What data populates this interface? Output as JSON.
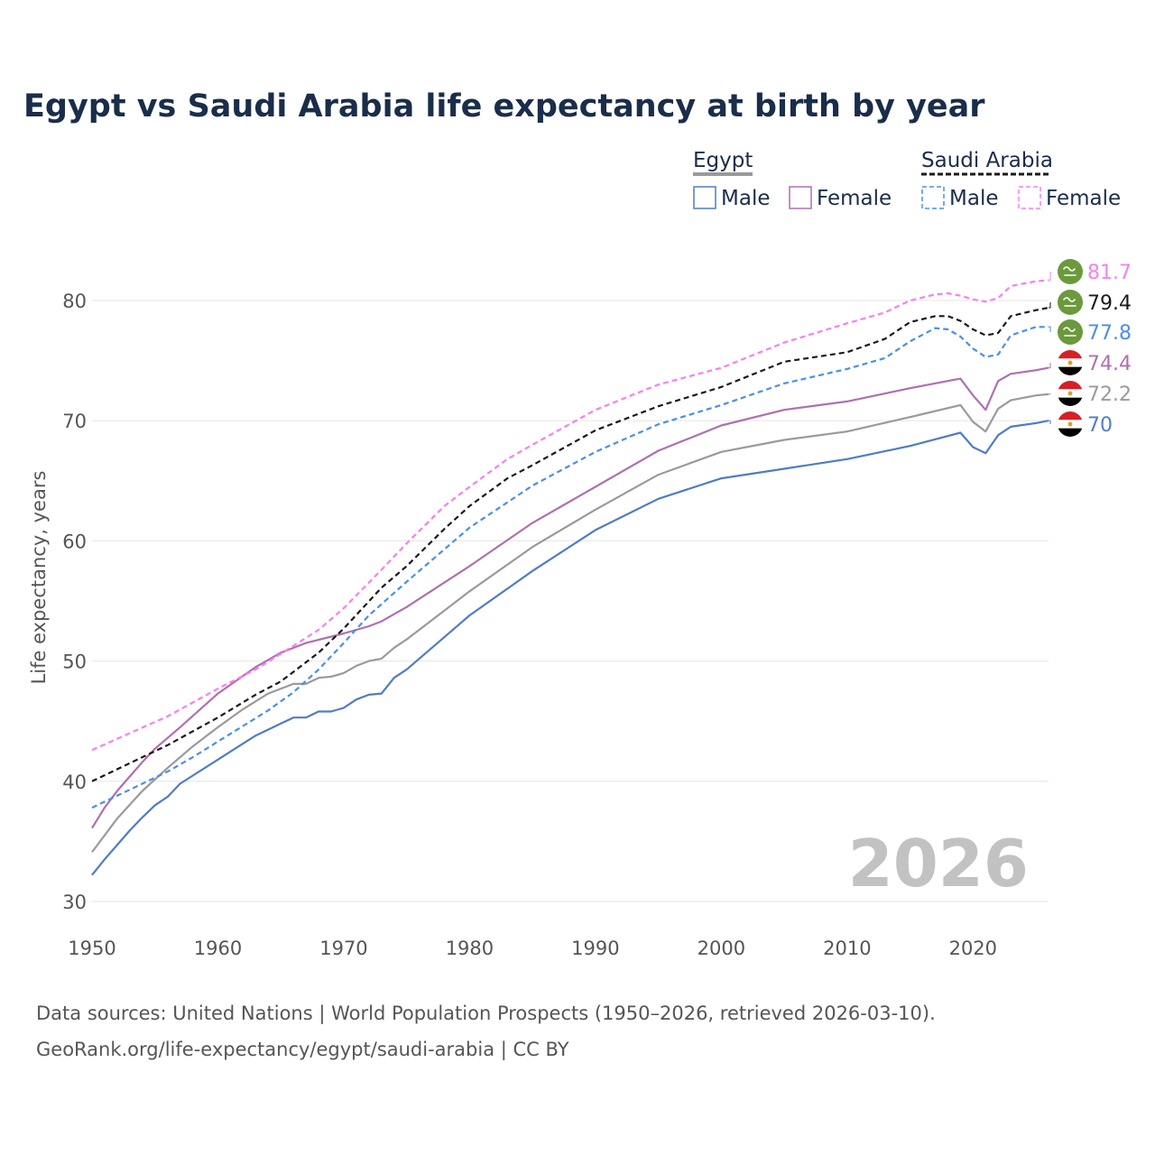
{
  "colors": {
    "egypt_male": "#4f7cc7",
    "egypt_female": "#b06fb0",
    "egypt_total": "#9a9a9a",
    "saudi_male": "#4a8fe8",
    "saudi_female": "#f77ff0",
    "saudi_total": "#1a1a1a",
    "title": "#1a2d4a"
  },
  "chart_data": {
    "type": "line",
    "title": "Egypt vs Saudi Arabia life expectancy at birth by year",
    "ylabel": "Life expectancy, years",
    "xlabel": "",
    "xlim": [
      1950,
      2026
    ],
    "ylim": [
      30,
      82
    ],
    "x_ticks": [
      1950,
      1960,
      1970,
      1980,
      1990,
      2000,
      2010,
      2020
    ],
    "y_ticks": [
      30,
      40,
      50,
      60,
      70,
      80
    ],
    "year_watermark": "2026",
    "legend": {
      "egypt_heading": "Egypt",
      "saudi_heading": "Saudi Arabia",
      "male": "Male",
      "female": "Female"
    },
    "end_labels": {
      "saudi_female": "81.7",
      "saudi_total": "79.4",
      "saudi_male": "77.8",
      "egypt_female": "74.4",
      "egypt_total": "72.2",
      "egypt_male": "70"
    },
    "series": [
      {
        "name": "Egypt Male",
        "key": "egypt_male",
        "dashed": false,
        "points": [
          [
            1950,
            32.2
          ],
          [
            1951,
            33.5
          ],
          [
            1952,
            34.7
          ],
          [
            1953,
            35.9
          ],
          [
            1954,
            37.0
          ],
          [
            1955,
            38.0
          ],
          [
            1956,
            38.7
          ],
          [
            1957,
            39.8
          ],
          [
            1960,
            41.8
          ],
          [
            1963,
            43.8
          ],
          [
            1965,
            44.8
          ],
          [
            1966,
            45.3
          ],
          [
            1967,
            45.3
          ],
          [
            1968,
            45.8
          ],
          [
            1969,
            45.8
          ],
          [
            1970,
            46.1
          ],
          [
            1971,
            46.8
          ],
          [
            1972,
            47.2
          ],
          [
            1973,
            47.3
          ],
          [
            1974,
            48.6
          ],
          [
            1975,
            49.3
          ],
          [
            1980,
            53.8
          ],
          [
            1985,
            57.5
          ],
          [
            1990,
            60.9
          ],
          [
            1995,
            63.5
          ],
          [
            2000,
            65.2
          ],
          [
            2005,
            66.0
          ],
          [
            2010,
            66.8
          ],
          [
            2015,
            67.9
          ],
          [
            2019,
            69.0
          ],
          [
            2020,
            67.8
          ],
          [
            2021,
            67.3
          ],
          [
            2022,
            68.8
          ],
          [
            2023,
            69.5
          ],
          [
            2025,
            69.8
          ],
          [
            2026,
            70.0
          ]
        ]
      },
      {
        "name": "Egypt Female",
        "key": "egypt_female",
        "dashed": false,
        "points": [
          [
            1950,
            36.1
          ],
          [
            1951,
            37.8
          ],
          [
            1952,
            39.2
          ],
          [
            1953,
            40.4
          ],
          [
            1954,
            41.6
          ],
          [
            1955,
            42.7
          ],
          [
            1957,
            44.5
          ],
          [
            1960,
            47.3
          ],
          [
            1963,
            49.5
          ],
          [
            1965,
            50.7
          ],
          [
            1967,
            51.5
          ],
          [
            1970,
            52.3
          ],
          [
            1972,
            52.9
          ],
          [
            1973,
            53.3
          ],
          [
            1975,
            54.5
          ],
          [
            1980,
            57.9
          ],
          [
            1985,
            61.5
          ],
          [
            1990,
            64.5
          ],
          [
            1995,
            67.5
          ],
          [
            2000,
            69.6
          ],
          [
            2005,
            70.9
          ],
          [
            2010,
            71.6
          ],
          [
            2015,
            72.7
          ],
          [
            2019,
            73.5
          ],
          [
            2020,
            72.1
          ],
          [
            2021,
            70.9
          ],
          [
            2022,
            73.3
          ],
          [
            2023,
            73.9
          ],
          [
            2025,
            74.2
          ],
          [
            2026,
            74.4
          ]
        ]
      },
      {
        "name": "Egypt Total",
        "key": "egypt_total",
        "dashed": false,
        "points": [
          [
            1950,
            34.1
          ],
          [
            1952,
            36.9
          ],
          [
            1954,
            39.2
          ],
          [
            1956,
            41.1
          ],
          [
            1958,
            42.9
          ],
          [
            1960,
            44.5
          ],
          [
            1962,
            46.0
          ],
          [
            1964,
            47.3
          ],
          [
            1966,
            48.1
          ],
          [
            1967,
            48.1
          ],
          [
            1968,
            48.6
          ],
          [
            1969,
            48.7
          ],
          [
            1970,
            49.0
          ],
          [
            1971,
            49.6
          ],
          [
            1972,
            50.0
          ],
          [
            1973,
            50.2
          ],
          [
            1974,
            51.1
          ],
          [
            1975,
            51.8
          ],
          [
            1980,
            55.8
          ],
          [
            1985,
            59.5
          ],
          [
            1990,
            62.6
          ],
          [
            1995,
            65.5
          ],
          [
            2000,
            67.4
          ],
          [
            2005,
            68.4
          ],
          [
            2010,
            69.1
          ],
          [
            2015,
            70.3
          ],
          [
            2019,
            71.3
          ],
          [
            2020,
            69.9
          ],
          [
            2021,
            69.1
          ],
          [
            2022,
            71.0
          ],
          [
            2023,
            71.7
          ],
          [
            2025,
            72.1
          ],
          [
            2026,
            72.2
          ]
        ]
      },
      {
        "name": "Saudi Arabia Male",
        "key": "saudi_male",
        "dashed": true,
        "points": [
          [
            1950,
            37.8
          ],
          [
            1952,
            38.8
          ],
          [
            1954,
            39.8
          ],
          [
            1956,
            40.8
          ],
          [
            1958,
            42.0
          ],
          [
            1960,
            43.3
          ],
          [
            1962,
            44.6
          ],
          [
            1964,
            45.9
          ],
          [
            1966,
            47.4
          ],
          [
            1968,
            49.3
          ],
          [
            1970,
            51.5
          ],
          [
            1972,
            53.8
          ],
          [
            1975,
            56.6
          ],
          [
            1980,
            61.1
          ],
          [
            1985,
            64.6
          ],
          [
            1990,
            67.4
          ],
          [
            1995,
            69.7
          ],
          [
            2000,
            71.3
          ],
          [
            2005,
            73.1
          ],
          [
            2010,
            74.3
          ],
          [
            2013,
            75.2
          ],
          [
            2015,
            76.6
          ],
          [
            2017,
            77.7
          ],
          [
            2018,
            77.6
          ],
          [
            2019,
            77.0
          ],
          [
            2020,
            76.0
          ],
          [
            2021,
            75.3
          ],
          [
            2022,
            75.5
          ],
          [
            2023,
            77.1
          ],
          [
            2025,
            77.8
          ],
          [
            2026,
            77.8
          ]
        ]
      },
      {
        "name": "Saudi Arabia Female",
        "key": "saudi_female",
        "dashed": true,
        "points": [
          [
            1950,
            42.6
          ],
          [
            1953,
            44.0
          ],
          [
            1956,
            45.4
          ],
          [
            1960,
            47.7
          ],
          [
            1963,
            49.3
          ],
          [
            1965,
            50.6
          ],
          [
            1968,
            52.6
          ],
          [
            1970,
            54.4
          ],
          [
            1973,
            57.6
          ],
          [
            1975,
            59.8
          ],
          [
            1978,
            62.9
          ],
          [
            1980,
            64.5
          ],
          [
            1983,
            66.8
          ],
          [
            1985,
            68.0
          ],
          [
            1990,
            70.9
          ],
          [
            1995,
            73.0
          ],
          [
            2000,
            74.4
          ],
          [
            2005,
            76.5
          ],
          [
            2010,
            78.1
          ],
          [
            2013,
            79.0
          ],
          [
            2015,
            80.0
          ],
          [
            2017,
            80.5
          ],
          [
            2018,
            80.6
          ],
          [
            2019,
            80.4
          ],
          [
            2020,
            80.1
          ],
          [
            2021,
            79.9
          ],
          [
            2022,
            80.2
          ],
          [
            2023,
            81.2
          ],
          [
            2025,
            81.6
          ],
          [
            2026,
            81.7
          ]
        ]
      },
      {
        "name": "Saudi Arabia Total",
        "key": "saudi_total",
        "dashed": true,
        "points": [
          [
            1950,
            40.0
          ],
          [
            1953,
            41.5
          ],
          [
            1956,
            43.0
          ],
          [
            1960,
            45.3
          ],
          [
            1963,
            47.2
          ],
          [
            1965,
            48.3
          ],
          [
            1968,
            50.7
          ],
          [
            1970,
            52.7
          ],
          [
            1973,
            56.1
          ],
          [
            1975,
            57.9
          ],
          [
            1978,
            61.0
          ],
          [
            1980,
            62.9
          ],
          [
            1983,
            65.2
          ],
          [
            1985,
            66.3
          ],
          [
            1990,
            69.2
          ],
          [
            1995,
            71.2
          ],
          [
            2000,
            72.8
          ],
          [
            2005,
            74.9
          ],
          [
            2010,
            75.7
          ],
          [
            2013,
            76.8
          ],
          [
            2015,
            78.2
          ],
          [
            2017,
            78.7
          ],
          [
            2018,
            78.7
          ],
          [
            2019,
            78.3
          ],
          [
            2020,
            77.6
          ],
          [
            2021,
            77.1
          ],
          [
            2022,
            77.3
          ],
          [
            2023,
            78.7
          ],
          [
            2025,
            79.2
          ],
          [
            2026,
            79.4
          ]
        ]
      }
    ]
  },
  "source_line1": "Data sources: United Nations | World Population Prospects (1950–2026, retrieved 2026-03-10).",
  "source_line2": "GeoRank.org/life-expectancy/egypt/saudi-arabia | CC BY"
}
